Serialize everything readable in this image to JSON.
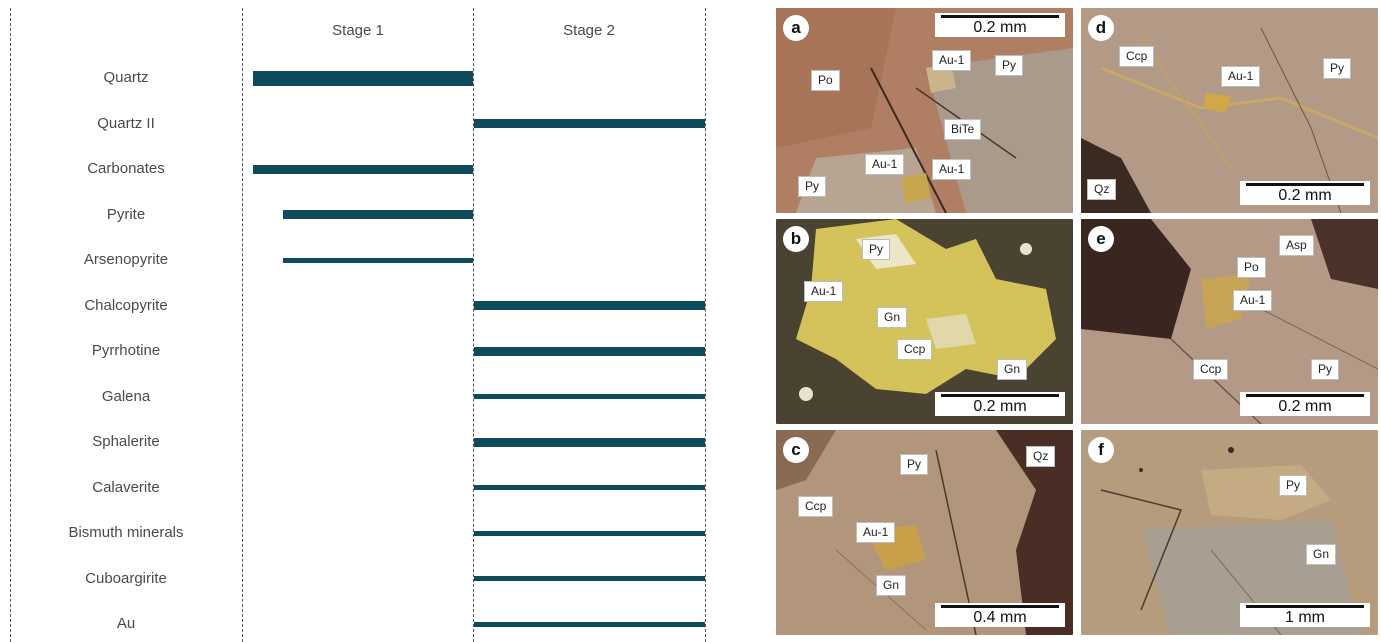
{
  "paragenesis": {
    "stages": [
      "Stage 1",
      "Stage 2"
    ],
    "minerals": [
      {
        "name": "Quartz",
        "stage1": true,
        "stage2": false,
        "weight": "thick"
      },
      {
        "name": "Quartz II",
        "stage1": false,
        "stage2": true,
        "weight": "medium"
      },
      {
        "name": "Carbonates",
        "stage1": true,
        "stage2": false,
        "weight": "medium"
      },
      {
        "name": "Pyrite",
        "stage1": true,
        "stage2": false,
        "weight": "medium",
        "late_start": true
      },
      {
        "name": "Arsenopyrite",
        "stage1": true,
        "stage2": false,
        "weight": "thin",
        "late_start": true
      },
      {
        "name": "Chalcopyrite",
        "stage1": false,
        "stage2": true,
        "weight": "medium"
      },
      {
        "name": "Pyrrhotine",
        "stage1": false,
        "stage2": true,
        "weight": "medium"
      },
      {
        "name": "Galena",
        "stage1": false,
        "stage2": true,
        "weight": "thin"
      },
      {
        "name": "Sphalerite",
        "stage1": false,
        "stage2": true,
        "weight": "medium"
      },
      {
        "name": "Calaverite",
        "stage1": false,
        "stage2": true,
        "weight": "thin"
      },
      {
        "name": "Bismuth minerals",
        "stage1": false,
        "stage2": true,
        "weight": "thin"
      },
      {
        "name": "Cuboargirite",
        "stage1": false,
        "stage2": true,
        "weight": "thin"
      },
      {
        "name": "Au",
        "stage1": false,
        "stage2": true,
        "weight": "thin"
      }
    ],
    "bar_color": "#0e4b5d"
  },
  "panels": {
    "a": {
      "letter": "a",
      "scale": "0.2 mm",
      "labels": [
        "Po",
        "Au-1",
        "Py",
        "BiTe",
        "Au-1",
        "Au-1",
        "Py"
      ]
    },
    "d": {
      "letter": "d",
      "scale": "0.2 mm",
      "labels": [
        "Ccp",
        "Au-1",
        "Py",
        "Qz"
      ]
    },
    "b": {
      "letter": "b",
      "scale": "0.2 mm",
      "labels": [
        "Py",
        "Au-1",
        "Gn",
        "Ccp",
        "Gn"
      ]
    },
    "e": {
      "letter": "e",
      "scale": "0.2 mm",
      "labels": [
        "Asp",
        "Po",
        "Au-1",
        "Ccp",
        "Py"
      ]
    },
    "c": {
      "letter": "c",
      "scale": "0.4 mm",
      "labels": [
        "Py",
        "Qz",
        "Ccp",
        "Au-1",
        "Gn"
      ]
    },
    "f": {
      "letter": "f",
      "scale": "1 mm",
      "labels": [
        "Py",
        "Gn"
      ]
    }
  }
}
